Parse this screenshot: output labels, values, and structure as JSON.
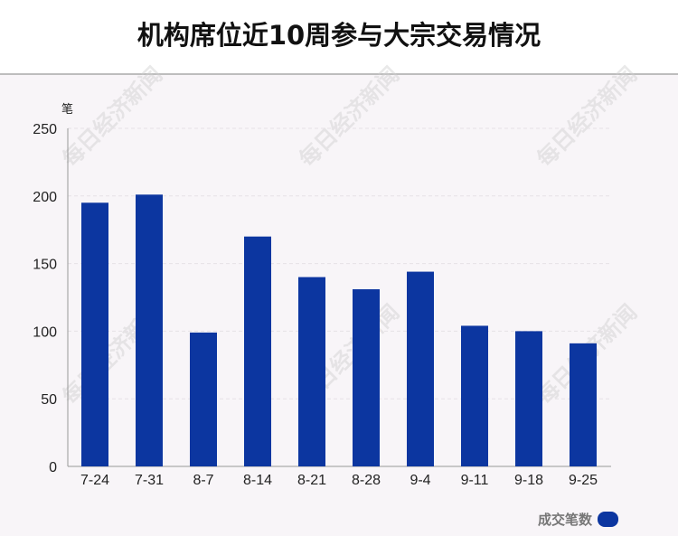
{
  "chart_data": {
    "type": "bar",
    "title": "机构席位近10周参与大宗交易情况",
    "ylabel": "笔",
    "xlabel": "",
    "categories": [
      "7-24",
      "7-31",
      "8-7",
      "8-14",
      "8-21",
      "8-28",
      "9-4",
      "9-11",
      "9-18",
      "9-25"
    ],
    "series": [
      {
        "name": "成交笔数",
        "values": [
          195,
          201,
          99,
          170,
          140,
          131,
          144,
          104,
          100,
          91
        ],
        "color": "#0c36a0"
      }
    ],
    "ylim": [
      0,
      250
    ],
    "yticks": [
      0,
      50,
      100,
      150,
      200,
      250
    ],
    "grid": true,
    "legend": "bottom-right"
  },
  "watermark": "每日经济新闻"
}
